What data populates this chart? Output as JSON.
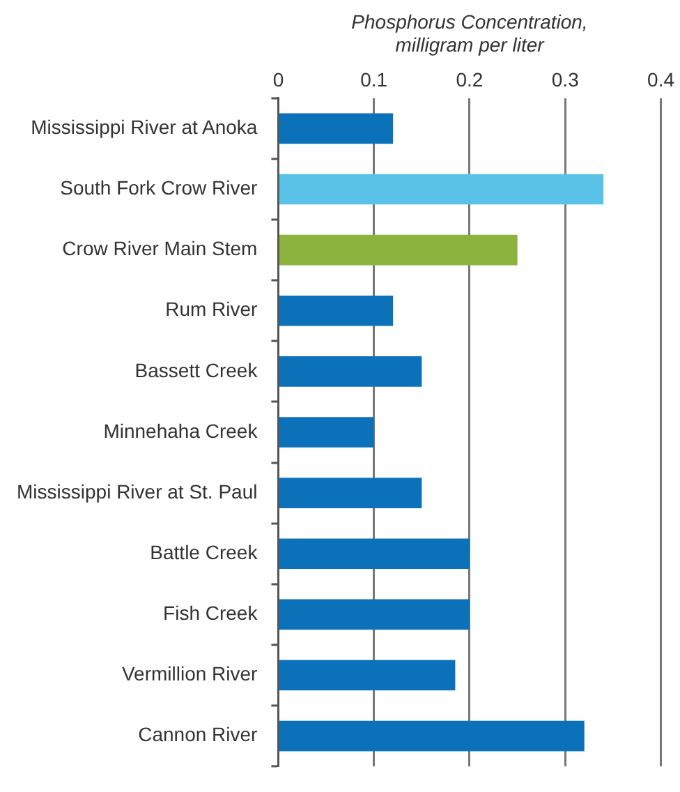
{
  "chart_data": {
    "type": "bar",
    "orientation": "horizontal",
    "xlabel": "Phosphorus Concentration,\nmilligram per liter",
    "categories": [
      "Mississippi River at Anoka",
      "South Fork Crow River",
      "Crow River Main Stem",
      "Rum River",
      "Bassett Creek",
      "Minnehaha Creek",
      "Mississippi River at St. Paul",
      "Battle Creek",
      "Fish Creek",
      "Vermillion River",
      "Cannon River"
    ],
    "values": [
      0.12,
      0.34,
      0.25,
      0.12,
      0.15,
      0.1,
      0.15,
      0.2,
      0.2,
      0.185,
      0.32
    ],
    "colors": [
      "#0b72b9",
      "#5bc2e7",
      "#8cb33e",
      "#0b72b9",
      "#0b72b9",
      "#0b72b9",
      "#0b72b9",
      "#0b72b9",
      "#0b72b9",
      "#0b72b9",
      "#0b72b9"
    ],
    "xlim": [
      0,
      0.4
    ],
    "xticks": [
      0,
      0.1,
      0.2,
      0.3,
      0.4
    ],
    "grid": "x",
    "legend": false
  }
}
